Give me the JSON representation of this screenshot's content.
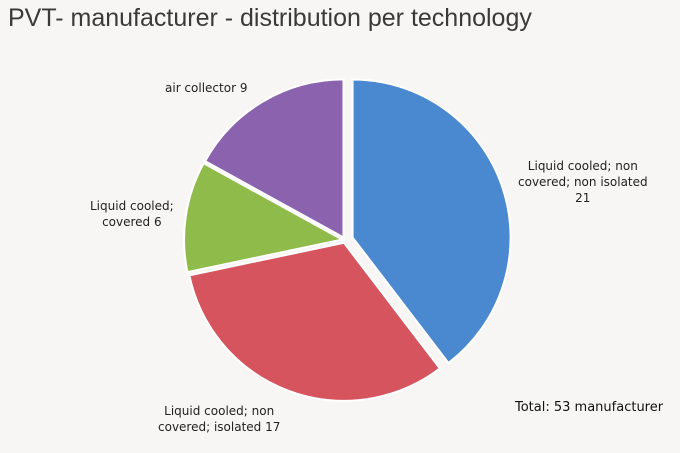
{
  "chart_data": {
    "type": "pie",
    "title": "PVT- manufacturer - distribution per technology",
    "slices": [
      {
        "lines": [
          "Liquid cooled; non",
          "covered; non isolated",
          "21"
        ],
        "value": 21,
        "color": "#4a89cf"
      },
      {
        "lines": [
          "Liquid cooled; non",
          "covered;  isolated 17"
        ],
        "value": 17,
        "color": "#d5545e"
      },
      {
        "lines": [
          "Liquid cooled;",
          "covered 6"
        ],
        "value": 6,
        "color": "#8fbb4b"
      },
      {
        "lines": [
          "air collector 9"
        ],
        "value": 9,
        "color": "#8a62ad"
      }
    ],
    "start_angle": "12 o'clock",
    "direction": "clockwise",
    "exploded_slice": 0,
    "legend": "none",
    "note": "Total: 53 manufacturer"
  }
}
